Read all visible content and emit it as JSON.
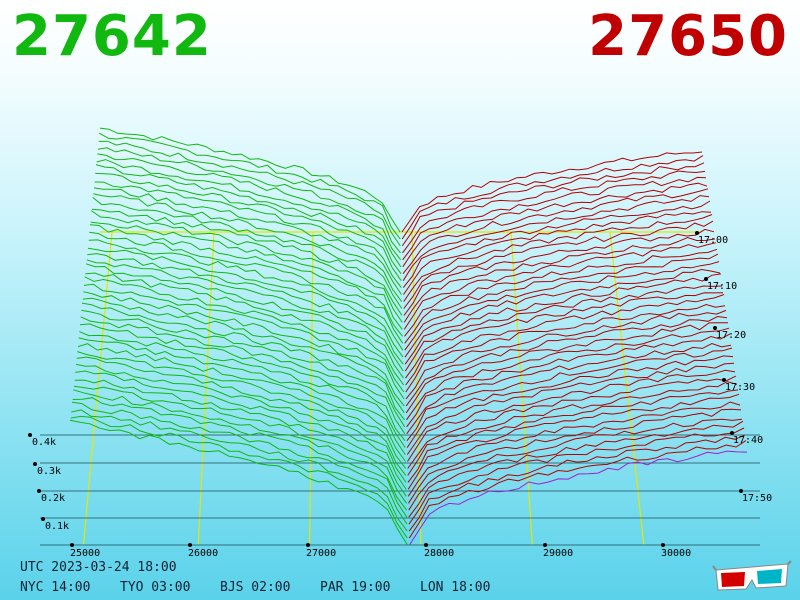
{
  "prices": {
    "bid": "27642",
    "ask": "27650",
    "bid_color": "#10b810",
    "ask_color": "#c00000"
  },
  "times": {
    "utc": "UTC 2023-03-24 18:00",
    "zones": [
      "NYC 14:00",
      "TYO 03:00",
      "BJS 02:00",
      "PAR 19:00",
      "LON 18:00"
    ]
  },
  "icons": {
    "glasses": "3d-glasses-icon"
  },
  "chart_data": {
    "type": "area",
    "price_ticks": [
      "25000",
      "26000",
      "27000",
      "28000",
      "29000",
      "30000"
    ],
    "volume_ticks": [
      "0.1k",
      "0.2k",
      "0.3k",
      "0.4k"
    ],
    "time_ticks": [
      "17:00",
      "17:10",
      "17:20",
      "17:30",
      "17:40",
      "17:50"
    ],
    "bid_color": "#10b810",
    "ask_color": "#b00000",
    "grid_color": "#e6e600"
  }
}
